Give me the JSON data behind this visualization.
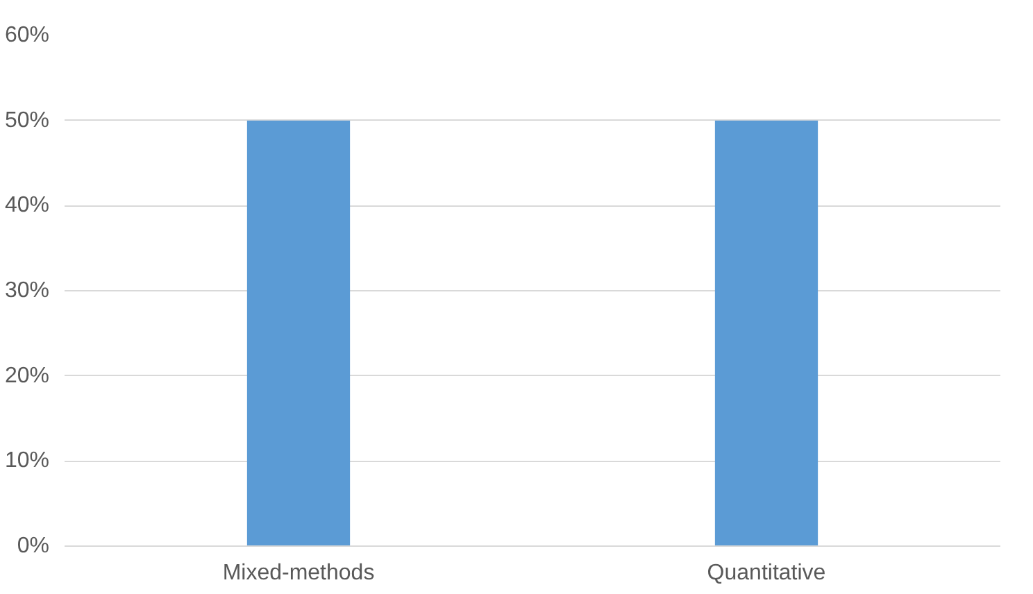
{
  "chart_data": {
    "type": "bar",
    "categories": [
      "Mixed-methods",
      "Quantitative"
    ],
    "values": [
      50,
      50
    ],
    "color": "#5b9bd5",
    "ylim": [
      0,
      60
    ],
    "yticks": [
      {
        "value": 0,
        "label": "0%"
      },
      {
        "value": 10,
        "label": "10%"
      },
      {
        "value": 20,
        "label": "20%"
      },
      {
        "value": 30,
        "label": "30%"
      },
      {
        "value": 40,
        "label": "40%"
      },
      {
        "value": 50,
        "label": "50%"
      },
      {
        "value": 60,
        "label": "60%"
      }
    ],
    "grid": "y"
  }
}
